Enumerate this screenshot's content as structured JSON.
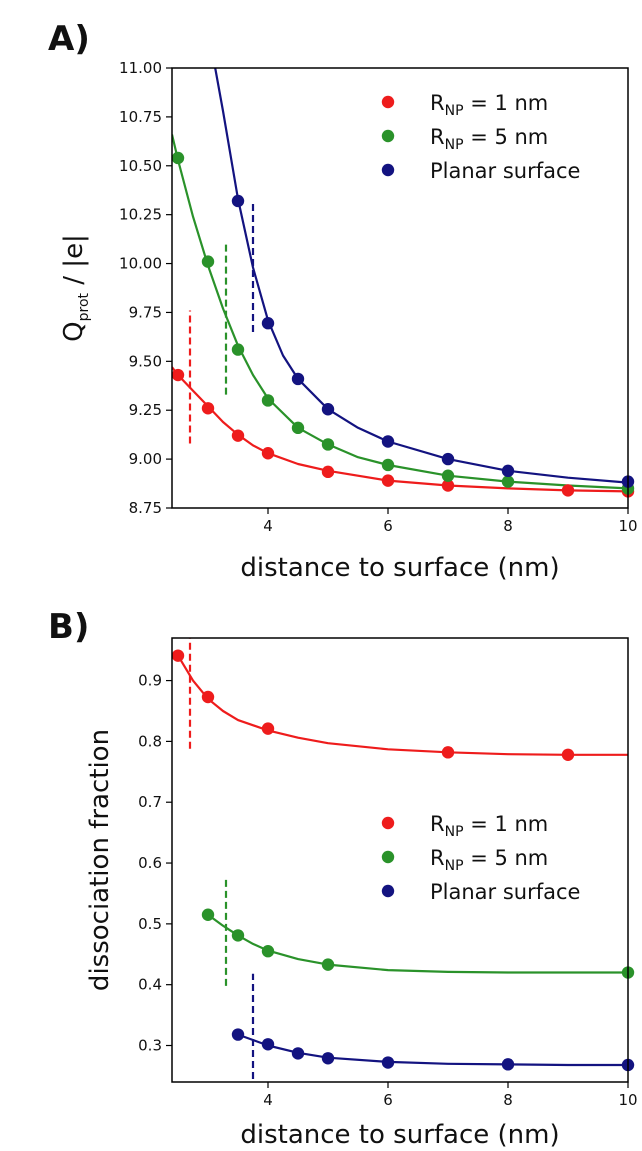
{
  "chart_data": [
    {
      "panel_label": "A)",
      "type": "scatter",
      "xlabel": "distance to surface (nm)",
      "ylabel": "Q",
      "ylabel_sub": "prot",
      "ylabel_suffix": " / |e|",
      "xlim": [
        2.4,
        10
      ],
      "ylim": [
        8.75,
        11.0
      ],
      "xticks": [
        4,
        6,
        8,
        10
      ],
      "yticks": [
        "8.75",
        "9.00",
        "9.25",
        "9.50",
        "9.75",
        "10.00",
        "10.25",
        "10.50",
        "10.75",
        "11.00"
      ],
      "legend_position": "top-right",
      "series": [
        {
          "legend_prefix": "R",
          "legend_sub": "NP",
          "legend_suffix": " = 1 nm",
          "color": "#ee1c1c",
          "x": [
            2.5,
            3.0,
            3.5,
            4.0,
            5.0,
            6.0,
            7.0,
            9.0,
            10.0
          ],
          "y": [
            9.43,
            9.26,
            9.12,
            9.03,
            8.935,
            8.89,
            8.865,
            8.84,
            8.835
          ],
          "fit": [
            [
              2.4,
              9.47
            ],
            [
              2.5,
              9.43
            ],
            [
              2.75,
              9.35
            ],
            [
              3.0,
              9.27
            ],
            [
              3.25,
              9.19
            ],
            [
              3.5,
              9.125
            ],
            [
              3.75,
              9.07
            ],
            [
              4.0,
              9.03
            ],
            [
              4.5,
              8.975
            ],
            [
              5.0,
              8.94
            ],
            [
              6.0,
              8.89
            ],
            [
              7.0,
              8.865
            ],
            [
              8.0,
              8.85
            ],
            [
              9.0,
              8.84
            ],
            [
              10.0,
              8.835
            ]
          ],
          "cutoff": 2.7,
          "cutoff_range": [
            9.08,
            9.76
          ]
        },
        {
          "legend_prefix": "R",
          "legend_sub": "NP",
          "legend_suffix": " = 5 nm",
          "color": "#2a922a",
          "x": [
            2.5,
            3.0,
            3.5,
            4.0,
            4.5,
            5.0,
            6.0,
            7.0,
            8.0,
            10.0
          ],
          "y": [
            10.54,
            10.01,
            9.56,
            9.3,
            9.16,
            9.075,
            8.97,
            8.915,
            8.885,
            8.85
          ],
          "fit": [
            [
              2.4,
              10.66
            ],
            [
              2.5,
              10.53
            ],
            [
              2.75,
              10.24
            ],
            [
              3.0,
              9.99
            ],
            [
              3.25,
              9.77
            ],
            [
              3.5,
              9.58
            ],
            [
              3.75,
              9.43
            ],
            [
              4.0,
              9.31
            ],
            [
              4.5,
              9.16
            ],
            [
              5.0,
              9.075
            ],
            [
              5.5,
              9.01
            ],
            [
              6.0,
              8.97
            ],
            [
              7.0,
              8.915
            ],
            [
              8.0,
              8.885
            ],
            [
              9.0,
              8.865
            ],
            [
              10.0,
              8.85
            ]
          ],
          "cutoff": 3.3,
          "cutoff_range": [
            9.33,
            10.1
          ]
        },
        {
          "legend_prefix": "",
          "legend_sub": "",
          "legend_suffix": "Planar surface",
          "color": "#131380",
          "x": [
            3.5,
            4.0,
            4.5,
            5.0,
            6.0,
            7.0,
            8.0,
            10.0
          ],
          "y": [
            10.32,
            9.695,
            9.41,
            9.255,
            9.09,
            9.0,
            8.94,
            8.885
          ],
          "fit": [
            [
              3.12,
              11.0
            ],
            [
              3.25,
              10.78
            ],
            [
              3.5,
              10.33
            ],
            [
              3.75,
              9.98
            ],
            [
              4.0,
              9.71
            ],
            [
              4.25,
              9.53
            ],
            [
              4.5,
              9.41
            ],
            [
              5.0,
              9.255
            ],
            [
              5.5,
              9.16
            ],
            [
              6.0,
              9.09
            ],
            [
              7.0,
              9.0
            ],
            [
              8.0,
              8.94
            ],
            [
              9.0,
              8.905
            ],
            [
              10.0,
              8.88
            ]
          ],
          "cutoff": 3.75,
          "cutoff_range": [
            9.65,
            10.32
          ]
        }
      ]
    },
    {
      "panel_label": "B)",
      "type": "scatter",
      "xlabel": "distance to surface (nm)",
      "ylabel": "dissociation fraction",
      "xlim": [
        2.4,
        10
      ],
      "ylim": [
        0.24,
        0.97
      ],
      "xticks": [
        4,
        6,
        8,
        10
      ],
      "yticks": [
        "0.3",
        "0.4",
        "0.5",
        "0.6",
        "0.7",
        "0.8",
        "0.9"
      ],
      "legend_position": "center-right",
      "series": [
        {
          "legend_prefix": "R",
          "legend_sub": "NP",
          "legend_suffix": " = 1 nm",
          "color": "#ee1c1c",
          "x": [
            2.5,
            3.0,
            4.0,
            7.0,
            9.0
          ],
          "y": [
            0.941,
            0.873,
            0.821,
            0.782,
            0.778
          ],
          "fit": [
            [
              2.5,
              0.941
            ],
            [
              2.75,
              0.9
            ],
            [
              3.0,
              0.87
            ],
            [
              3.25,
              0.85
            ],
            [
              3.5,
              0.835
            ],
            [
              4.0,
              0.818
            ],
            [
              4.5,
              0.806
            ],
            [
              5.0,
              0.797
            ],
            [
              6.0,
              0.787
            ],
            [
              7.0,
              0.782
            ],
            [
              8.0,
              0.779
            ],
            [
              9.0,
              0.778
            ],
            [
              10.0,
              0.778
            ]
          ],
          "cutoff": 2.7,
          "cutoff_range": [
            0.788,
            0.97
          ]
        },
        {
          "legend_prefix": "R",
          "legend_sub": "NP",
          "legend_suffix": " = 5 nm",
          "color": "#2a922a",
          "x": [
            3.0,
            3.5,
            4.0,
            5.0,
            10.0
          ],
          "y": [
            0.515,
            0.481,
            0.455,
            0.433,
            0.42
          ],
          "fit": [
            [
              3.0,
              0.515
            ],
            [
              3.25,
              0.497
            ],
            [
              3.5,
              0.481
            ],
            [
              3.75,
              0.467
            ],
            [
              4.0,
              0.456
            ],
            [
              4.5,
              0.442
            ],
            [
              5.0,
              0.433
            ],
            [
              6.0,
              0.424
            ],
            [
              7.0,
              0.421
            ],
            [
              8.0,
              0.42
            ],
            [
              9.0,
              0.42
            ],
            [
              10.0,
              0.42
            ]
          ],
          "cutoff": 3.3,
          "cutoff_range": [
            0.398,
            0.578
          ]
        },
        {
          "legend_prefix": "",
          "legend_sub": "",
          "legend_suffix": "Planar surface",
          "color": "#131380",
          "x": [
            3.5,
            4.0,
            4.5,
            5.0,
            6.0,
            8.0,
            10.0
          ],
          "y": [
            0.318,
            0.302,
            0.287,
            0.279,
            0.272,
            0.269,
            0.268
          ],
          "fit": [
            [
              3.5,
              0.318
            ],
            [
              3.75,
              0.309
            ],
            [
              4.0,
              0.3
            ],
            [
              4.5,
              0.288
            ],
            [
              5.0,
              0.28
            ],
            [
              6.0,
              0.273
            ],
            [
              7.0,
              0.27
            ],
            [
              8.0,
              0.269
            ],
            [
              9.0,
              0.268
            ],
            [
              10.0,
              0.268
            ]
          ],
          "cutoff": 3.75,
          "cutoff_range": [
            0.245,
            0.418
          ]
        }
      ]
    }
  ]
}
